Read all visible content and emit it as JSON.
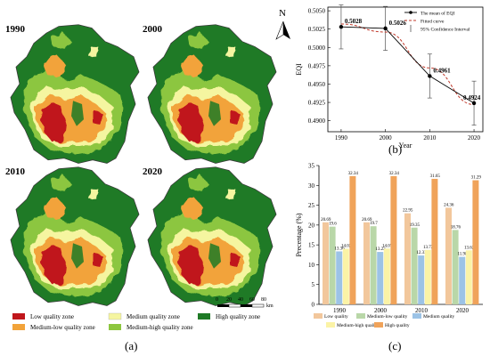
{
  "maps": {
    "panels": [
      {
        "year": "1990"
      },
      {
        "year": "2000"
      },
      {
        "year": "2010"
      },
      {
        "year": "2020"
      }
    ],
    "north_label": "N",
    "scale": {
      "ticks": [
        "0",
        "20",
        "40",
        "60",
        "80"
      ],
      "unit": "km"
    },
    "legend": [
      {
        "label": "Low quality zone",
        "color": "#c0171c"
      },
      {
        "label": "Medium-low quality zone",
        "color": "#f2a33a"
      },
      {
        "label": "Medium quality zone",
        "color": "#f5f5a0"
      },
      {
        "label": "Medium-high quality zone",
        "color": "#8cc63f"
      },
      {
        "label": "High quality zone",
        "color": "#1f7a26"
      }
    ],
    "caption": "(a)"
  },
  "captions": {
    "b": "(b)",
    "c": "(c)"
  },
  "chart_data": [
    {
      "type": "line",
      "x": [
        1990,
        2000,
        2010,
        2020
      ],
      "series": [
        {
          "name": "The mean of EQI",
          "values": [
            0.5028,
            0.5026,
            0.4961,
            0.4924
          ],
          "error": [
            0.003,
            0.003,
            0.003,
            0.003
          ],
          "color": "#000000"
        },
        {
          "name": "Fitted curve",
          "values": [
            0.5032,
            0.5021,
            0.4972,
            0.4922
          ],
          "color": "#c0392b"
        },
        {
          "name": "95% Confidence Interval",
          "color": "#555555"
        }
      ],
      "value_labels": [
        "0.5028",
        "0.5026",
        "0.4961",
        "0.4924"
      ],
      "xlabel": "Year",
      "ylabel": "EQI",
      "xlim": [
        1987,
        2022
      ],
      "ylim": [
        0.4885,
        0.5055
      ],
      "yticks": [
        "0.4900",
        "0.4925",
        "0.4950",
        "0.4975",
        "0.5000",
        "0.5025",
        "0.5050"
      ],
      "xticks": [
        "1990",
        "2000",
        "2010",
        "2020"
      ],
      "grid": false,
      "legend": "top-right"
    },
    {
      "type": "bar",
      "categories": [
        "1990",
        "2000",
        "2010",
        "2020"
      ],
      "series": [
        {
          "name": "Low quality",
          "values": [
            20.69,
            20.69,
            22.95,
            24.36
          ],
          "color": "#f2c79c"
        },
        {
          "name": "Medium-low quality",
          "values": [
            19.6,
            19.7,
            19.35,
            18.76
          ],
          "color": "#b9d7a8"
        },
        {
          "name": "Medium quality",
          "values": [
            13.36,
            13.22,
            12.33,
            11.98
          ],
          "color": "#9cc3e6"
        },
        {
          "name": "Medium-high quality",
          "values": [
            14.02,
            14.07,
            13.72,
            13.62
          ],
          "color": "#fbf3a6"
        },
        {
          "name": "High quality",
          "values": [
            32.34,
            32.34,
            31.65,
            31.29
          ],
          "color": "#f0a35a"
        }
      ],
      "value_labels": [
        [
          "20.69",
          "19.6",
          "13.36",
          "14.02",
          "32.34"
        ],
        [
          "20.69",
          "19.7",
          "13.22",
          "14.07",
          "32.34"
        ],
        [
          "22.95",
          "19.35",
          "12.33",
          "13.72",
          "31.65"
        ],
        [
          "24.36",
          "18.76",
          "11.98",
          "13.62",
          "31.29"
        ]
      ],
      "xlabel": "",
      "ylabel": "Precentage (%)",
      "ylim": [
        0,
        35
      ],
      "yticks": [
        "0",
        "5",
        "10",
        "15",
        "20",
        "25",
        "30",
        "35"
      ],
      "grid": false,
      "legend": "bottom"
    }
  ]
}
